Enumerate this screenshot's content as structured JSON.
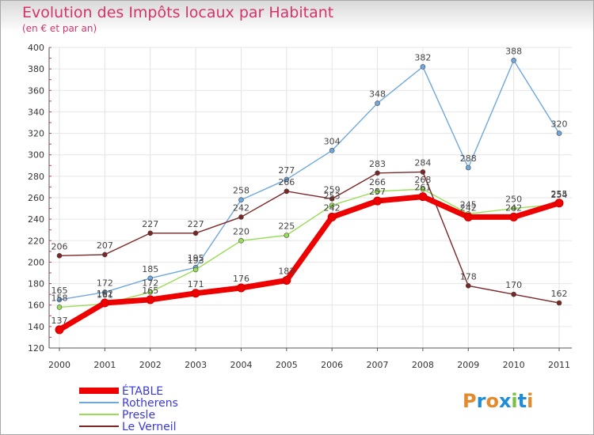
{
  "chart_data": {
    "type": "line",
    "title": "Evolution des Impôts locaux par Habitant",
    "subtitle": "(en € et par an)",
    "categories": [
      "2000",
      "2001",
      "2002",
      "2003",
      "2004",
      "2005",
      "2006",
      "2007",
      "2008",
      "2009",
      "2010",
      "2011"
    ],
    "ylim": [
      120,
      400
    ],
    "yticks": [
      120,
      140,
      160,
      180,
      200,
      220,
      240,
      260,
      280,
      300,
      320,
      340,
      360,
      380,
      400
    ],
    "series": [
      {
        "name": "ÉTABLE",
        "color": "#ee0000",
        "values": [
          137,
          162,
          165,
          171,
          176,
          183,
          242,
          257,
          261,
          242,
          242,
          255
        ]
      },
      {
        "name": "Rotherens",
        "color": "#6fa8dc",
        "values": [
          165,
          172,
          185,
          195,
          258,
          277,
          304,
          348,
          382,
          288,
          388,
          320
        ]
      },
      {
        "name": "Presle",
        "color": "#99dd55",
        "values": [
          158,
          161,
          172,
          193,
          220,
          225,
          253,
          266,
          268,
          245,
          250,
          254
        ]
      },
      {
        "name": "Le Verneil",
        "color": "#7b2626",
        "values": [
          206,
          207,
          227,
          227,
          242,
          266,
          259,
          283,
          284,
          178,
          170,
          162
        ]
      }
    ]
  },
  "brand": {
    "name": "Proxiti",
    "letters": [
      "P",
      "r",
      "o",
      "x",
      "i",
      "t",
      "i"
    ],
    "colors": [
      "#e38b2c",
      "#1f8dd6",
      "#e38b2c",
      "#1f8dd6",
      "#7ac142",
      "#1f8dd6",
      "#e38b2c"
    ]
  }
}
